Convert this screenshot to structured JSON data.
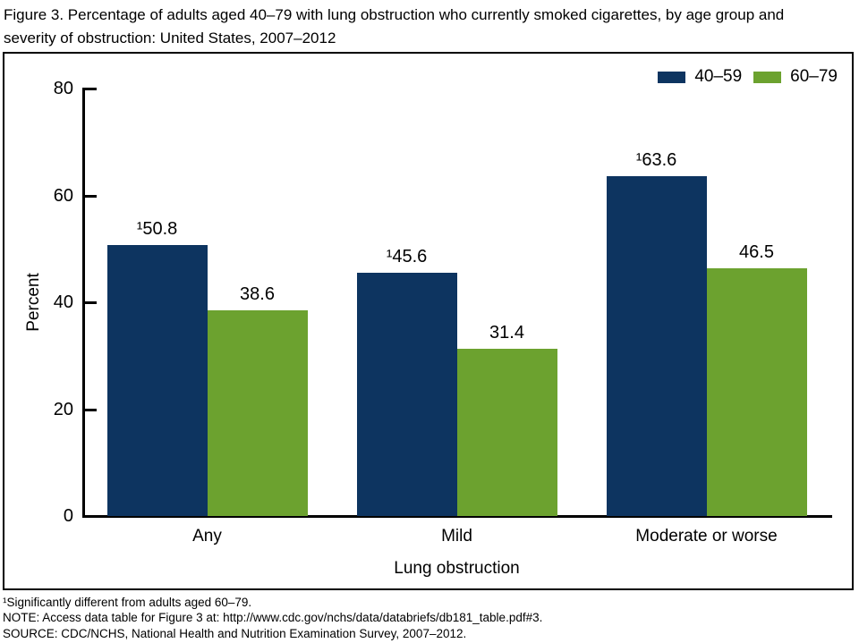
{
  "figure": {
    "title_line1": "Figure 3. Percentage of adults aged 40–79 with lung obstruction who currently smoked cigarettes, by age group and",
    "title_line2": "severity of obstruction: United States, 2007–2012"
  },
  "chart_data": {
    "type": "bar",
    "title": "Figure 3. Percentage of adults aged 40–79 with lung obstruction who currently smoked cigarettes, by age group and severity of obstruction: United States, 2007–2012",
    "categories": [
      "Any",
      "Mild",
      "Moderate or worse"
    ],
    "series": [
      {
        "name": "40–59",
        "color": "#0D3460",
        "values": [
          50.8,
          45.6,
          63.6
        ],
        "bar_labels": [
          "¹50.8",
          "¹45.6",
          "¹63.6"
        ]
      },
      {
        "name": "60–79",
        "color": "#6CA22F",
        "values": [
          38.6,
          31.4,
          46.5
        ],
        "bar_labels": [
          "38.6",
          "31.4",
          "46.5"
        ]
      }
    ],
    "xlabel": "Lung obstruction",
    "ylabel": "Percent",
    "ylim": [
      0,
      80
    ],
    "yticks": [
      0,
      20,
      40,
      60,
      80
    ],
    "legend_position": "top-right",
    "grid": false,
    "axis_color": "#000000",
    "background_color": "#ffffff"
  },
  "footnotes": [
    "¹Significantly different from adults aged 60–79.",
    "NOTE: Access data table for Figure 3 at: http://www.cdc.gov/nchs/data/databriefs/db181_table.pdf#3.",
    "SOURCE: CDC/NCHS, National Health and Nutrition Examination Survey, 2007–2012."
  ]
}
